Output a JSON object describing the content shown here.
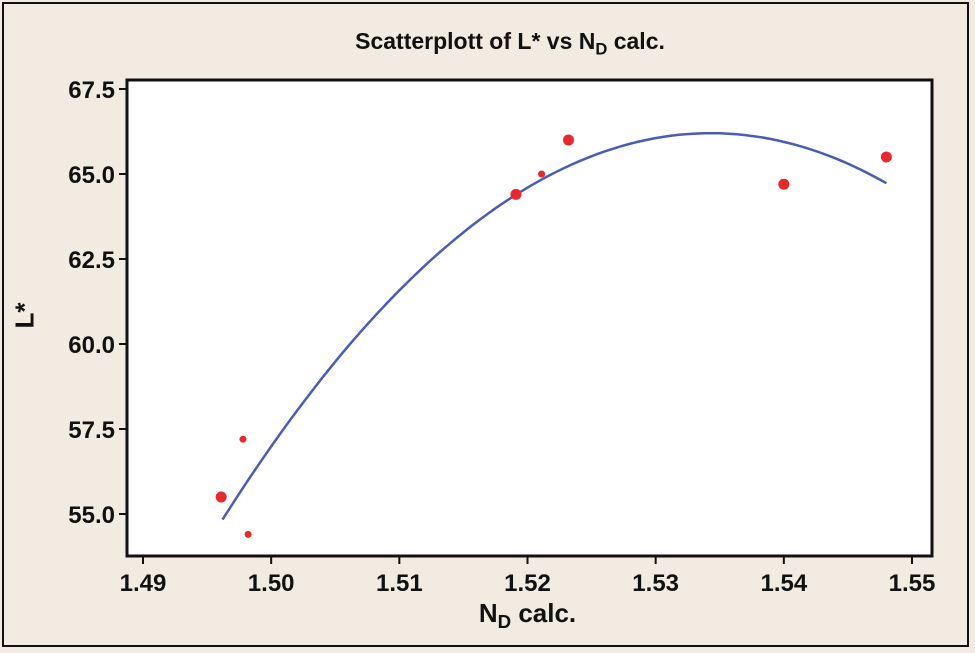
{
  "chart_data": {
    "type": "scatter",
    "title": "Scatterplott of L* vs N",
    "title_sub": "D",
    "title_suffix": " calc.",
    "xlabel": "N",
    "xlabel_sub": "D",
    "xlabel_suffix": " calc.",
    "ylabel": "L*",
    "xlim": [
      1.49,
      1.55
    ],
    "ylim": [
      53.9,
      67.7
    ],
    "xticks": [
      "1.49",
      "1.50",
      "1.51",
      "1.52",
      "1.53",
      "1.54",
      "1.55"
    ],
    "yticks": [
      "55.0",
      "57.5",
      "60.0",
      "62.5",
      "65.0",
      "67.5"
    ],
    "grid": false,
    "points": [
      {
        "x": 1.4961,
        "y": 55.5,
        "size": "large"
      },
      {
        "x": 1.4978,
        "y": 57.2,
        "size": "small"
      },
      {
        "x": 1.4982,
        "y": 54.4,
        "size": "small"
      },
      {
        "x": 1.5191,
        "y": 64.4,
        "size": "large"
      },
      {
        "x": 1.5211,
        "y": 65.0,
        "size": "small"
      },
      {
        "x": 1.5232,
        "y": 66.0,
        "size": "large"
      },
      {
        "x": 1.54,
        "y": 64.7,
        "size": "large"
      },
      {
        "x": 1.548,
        "y": 65.5,
        "size": "large"
      }
    ],
    "fit": {
      "type": "quadratic",
      "vertex_x": 1.5343,
      "vertex_y": 66.2,
      "a": -7830,
      "x_range": [
        1.4962,
        1.548
      ]
    },
    "colors": {
      "points": "#e8282a",
      "fit": "#4a5cb4",
      "background": "#f1ebe1"
    }
  }
}
